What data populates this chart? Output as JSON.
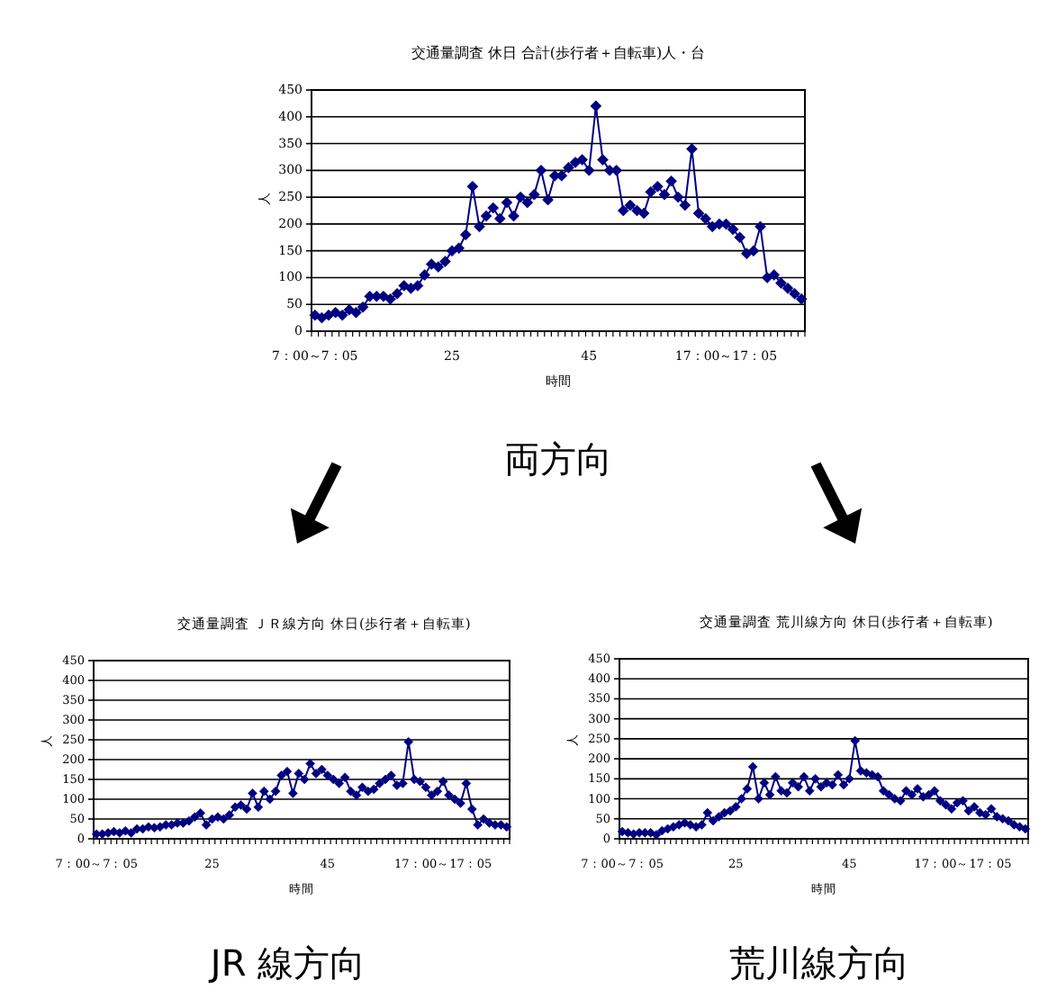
{
  "chart_data": [
    {
      "type": "line",
      "title": "交通量調査  休日  合計(歩行者＋自転車)人・台",
      "xlabel": "時間",
      "ylabel": "人",
      "annotations": [
        "両方向"
      ],
      "categories": [
        "7：00～7：05",
        null,
        null,
        null,
        null,
        null,
        null,
        null,
        null,
        null,
        null,
        null,
        null,
        null,
        null,
        null,
        null,
        null,
        null,
        null,
        "25",
        null,
        null,
        null,
        null,
        null,
        null,
        null,
        null,
        null,
        null,
        null,
        null,
        null,
        null,
        null,
        null,
        null,
        null,
        null,
        "45",
        null,
        null,
        null,
        null,
        null,
        null,
        null,
        null,
        null,
        null,
        null,
        null,
        null,
        null,
        null,
        null,
        null,
        null,
        null,
        "17：00～17：05",
        null,
        null,
        null,
        null,
        null,
        null,
        null,
        null,
        null,
        null,
        null
      ],
      "series": [
        {
          "color": "#000080",
          "values": [
            30,
            25,
            30,
            35,
            30,
            40,
            35,
            45,
            65,
            65,
            65,
            60,
            70,
            85,
            80,
            85,
            105,
            125,
            120,
            130,
            150,
            155,
            180,
            270,
            195,
            215,
            230,
            210,
            240,
            215,
            250,
            240,
            255,
            300,
            245,
            290,
            290,
            305,
            315,
            320,
            300,
            420,
            320,
            300,
            300,
            225,
            235,
            225,
            220,
            260,
            270,
            255,
            280,
            250,
            235,
            340,
            220,
            210,
            195,
            200,
            200,
            190,
            175,
            145,
            150,
            195,
            100,
            105,
            90,
            80,
            70,
            60
          ]
        }
      ],
      "ylim": [
        0,
        450
      ],
      "yticks": [
        0,
        50,
        100,
        150,
        200,
        250,
        300,
        350,
        400,
        450
      ],
      "grid": "y",
      "marker": "diamond"
    },
    {
      "type": "line",
      "title": "交通量調査  ＪＲ線方向  休日(歩行者＋自転車)",
      "xlabel": "時間",
      "ylabel": "人",
      "annotations": [
        "JR 線方向"
      ],
      "categories": [
        "7：00～7：05",
        null,
        null,
        null,
        null,
        null,
        null,
        null,
        null,
        null,
        null,
        null,
        null,
        null,
        null,
        null,
        null,
        null,
        null,
        null,
        "25",
        null,
        null,
        null,
        null,
        null,
        null,
        null,
        null,
        null,
        null,
        null,
        null,
        null,
        null,
        null,
        null,
        null,
        null,
        null,
        "45",
        null,
        null,
        null,
        null,
        null,
        null,
        null,
        null,
        null,
        null,
        null,
        null,
        null,
        null,
        null,
        null,
        null,
        null,
        null,
        "17：00～17：05",
        null,
        null,
        null,
        null,
        null,
        null,
        null,
        null,
        null,
        null,
        null
      ],
      "series": [
        {
          "color": "#000080",
          "values": [
            12,
            12,
            15,
            18,
            15,
            20,
            15,
            25,
            25,
            30,
            28,
            30,
            35,
            35,
            40,
            40,
            45,
            55,
            65,
            35,
            50,
            55,
            50,
            60,
            80,
            85,
            75,
            115,
            80,
            120,
            100,
            120,
            160,
            170,
            115,
            165,
            150,
            190,
            165,
            175,
            160,
            150,
            140,
            155,
            120,
            110,
            130,
            120,
            125,
            140,
            150,
            160,
            135,
            140,
            245,
            150,
            145,
            130,
            110,
            120,
            145,
            110,
            100,
            90,
            140,
            75,
            35,
            50,
            40,
            35,
            35,
            30
          ]
        }
      ],
      "ylim": [
        0,
        450
      ],
      "yticks": [
        0,
        50,
        100,
        150,
        200,
        250,
        300,
        350,
        400,
        450
      ],
      "grid": "y",
      "marker": "diamond"
    },
    {
      "type": "line",
      "title": "交通量調査  荒川線方向  休日(歩行者＋自転車)",
      "xlabel": "時間",
      "ylabel": "人",
      "annotations": [
        "荒川線方向"
      ],
      "categories": [
        "7：00～7：05",
        null,
        null,
        null,
        null,
        null,
        null,
        null,
        null,
        null,
        null,
        null,
        null,
        null,
        null,
        null,
        null,
        null,
        null,
        null,
        "25",
        null,
        null,
        null,
        null,
        null,
        null,
        null,
        null,
        null,
        null,
        null,
        null,
        null,
        null,
        null,
        null,
        null,
        null,
        null,
        "45",
        null,
        null,
        null,
        null,
        null,
        null,
        null,
        null,
        null,
        null,
        null,
        null,
        null,
        null,
        null,
        null,
        null,
        null,
        null,
        "17：00～17：05",
        null,
        null,
        null,
        null,
        null,
        null,
        null,
        null,
        null,
        null,
        null
      ],
      "series": [
        {
          "color": "#000080",
          "values": [
            18,
            15,
            12,
            15,
            15,
            15,
            10,
            20,
            25,
            30,
            35,
            40,
            35,
            30,
            35,
            65,
            45,
            55,
            65,
            70,
            80,
            100,
            125,
            180,
            100,
            140,
            110,
            155,
            120,
            115,
            140,
            130,
            155,
            120,
            150,
            130,
            140,
            135,
            160,
            135,
            150,
            245,
            170,
            165,
            160,
            155,
            120,
            110,
            100,
            95,
            120,
            110,
            125,
            105,
            110,
            120,
            95,
            85,
            75,
            90,
            95,
            70,
            80,
            65,
            60,
            75,
            55,
            50,
            45,
            35,
            30,
            25
          ]
        }
      ],
      "ylim": [
        0,
        450
      ],
      "yticks": [
        0,
        50,
        100,
        150,
        200,
        250,
        300,
        350,
        400,
        450
      ],
      "grid": "y",
      "marker": "diamond"
    }
  ]
}
